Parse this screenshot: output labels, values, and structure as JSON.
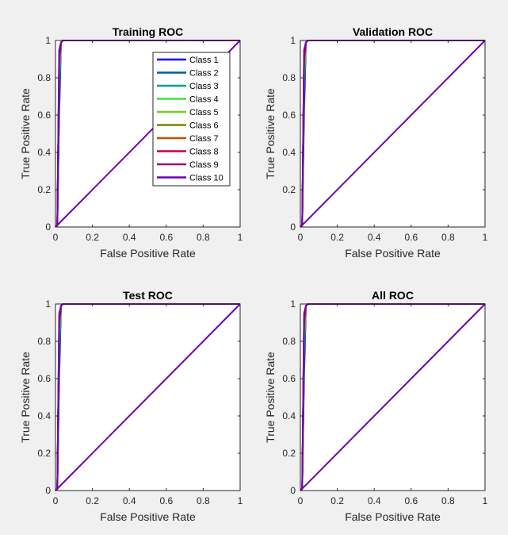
{
  "colors": {
    "figure_background": "#f0f0f0",
    "axes_background": "#ffffff",
    "axes_color": "#262626"
  },
  "chart_data": [
    {
      "type": "line",
      "title": "Training ROC",
      "xlabel": "False Positive Rate",
      "ylabel": "True Positive Rate",
      "xlim": [
        0,
        1
      ],
      "ylim": [
        0,
        1
      ],
      "xticks": [
        "0",
        "0.2",
        "0.4",
        "0.6",
        "0.8",
        "1"
      ],
      "yticks": [
        "0",
        "0.2",
        "0.4",
        "0.6",
        "0.8",
        "1"
      ],
      "grid": false,
      "legend": "top-right",
      "series": [
        {
          "name": "Class 1",
          "color": "#0000ff",
          "x": [
            0,
            0.01,
            0.02,
            0.03,
            0.04,
            1
          ],
          "y": [
            0,
            0.01,
            0.6,
            0.99,
            1,
            1
          ]
        },
        {
          "name": "Class 2",
          "color": "#005f9f",
          "x": [
            0,
            0.01,
            0.02,
            0.03,
            0.04,
            1
          ],
          "y": [
            0,
            0.01,
            0.7,
            0.99,
            1,
            1
          ]
        },
        {
          "name": "Class 3",
          "color": "#009f8f",
          "x": [
            0,
            0.01,
            0.02,
            0.03,
            0.04,
            1
          ],
          "y": [
            0,
            0.01,
            0.75,
            0.99,
            1,
            1
          ]
        },
        {
          "name": "Class 4",
          "color": "#3fdf3f",
          "x": [
            0,
            0.01,
            0.02,
            0.03,
            0.04,
            1
          ],
          "y": [
            0,
            0.01,
            0.8,
            0.99,
            1,
            1
          ]
        },
        {
          "name": "Class 5",
          "color": "#6fcf1f",
          "x": [
            0,
            0.01,
            0.02,
            0.03,
            0.04,
            1
          ],
          "y": [
            0,
            0.01,
            0.85,
            0.99,
            1,
            1
          ]
        },
        {
          "name": "Class 6",
          "color": "#808000",
          "x": [
            0,
            0.01,
            0.02,
            0.03,
            0.04,
            1
          ],
          "y": [
            0,
            0.01,
            0.85,
            0.99,
            1,
            1
          ]
        },
        {
          "name": "Class 7",
          "color": "#c05000",
          "x": [
            0,
            0.01,
            0.02,
            0.03,
            0.04,
            1
          ],
          "y": [
            0,
            0.01,
            0.88,
            0.99,
            1,
            1
          ]
        },
        {
          "name": "Class 8",
          "color": "#c0003f",
          "x": [
            0,
            0.01,
            0.02,
            0.03,
            0.04,
            1
          ],
          "y": [
            0,
            0.01,
            0.9,
            0.99,
            1,
            1
          ]
        },
        {
          "name": "Class 9",
          "color": "#9f007f",
          "x": [
            0,
            0.01,
            0.02,
            0.03,
            0.04,
            1
          ],
          "y": [
            0,
            0.01,
            0.92,
            0.99,
            1,
            1
          ]
        },
        {
          "name": "Class 10",
          "color": "#6f00af",
          "x": [
            0,
            0.01,
            0.02,
            0.03,
            0.04,
            0.05,
            1
          ],
          "y": [
            0,
            0.01,
            0.95,
            0.99,
            1,
            1,
            1
          ]
        },
        {
          "name": "",
          "color": "#6f00af",
          "x": [
            0,
            1
          ],
          "y": [
            0,
            1
          ]
        }
      ]
    },
    {
      "type": "line",
      "title": "Validation ROC",
      "xlabel": "False Positive Rate",
      "ylabel": "True Positive Rate",
      "xlim": [
        0,
        1
      ],
      "ylim": [
        0,
        1
      ],
      "xticks": [
        "0",
        "0.2",
        "0.4",
        "0.6",
        "0.8",
        "1"
      ],
      "yticks": [
        "0",
        "0.2",
        "0.4",
        "0.6",
        "0.8",
        "1"
      ],
      "grid": false,
      "series": [
        {
          "name": "",
          "color": "#0000ff",
          "x": [
            0,
            0.01,
            0.02,
            0.03,
            0.04,
            1
          ],
          "y": [
            0,
            0.01,
            0.6,
            0.99,
            1,
            1
          ]
        },
        {
          "name": "",
          "color": "#005f9f",
          "x": [
            0,
            0.01,
            0.02,
            0.03,
            0.04,
            1
          ],
          "y": [
            0,
            0.01,
            0.7,
            0.99,
            1,
            1
          ]
        },
        {
          "name": "",
          "color": "#009f8f",
          "x": [
            0,
            0.01,
            0.02,
            0.03,
            0.04,
            1
          ],
          "y": [
            0,
            0.01,
            0.75,
            0.99,
            1,
            1
          ]
        },
        {
          "name": "",
          "color": "#3fdf3f",
          "x": [
            0,
            0.01,
            0.02,
            0.03,
            0.04,
            1
          ],
          "y": [
            0,
            0.01,
            0.8,
            0.99,
            1,
            1
          ]
        },
        {
          "name": "",
          "color": "#6fcf1f",
          "x": [
            0,
            0.01,
            0.02,
            0.03,
            0.04,
            1
          ],
          "y": [
            0,
            0.01,
            0.85,
            0.99,
            1,
            1
          ]
        },
        {
          "name": "",
          "color": "#808000",
          "x": [
            0,
            0.01,
            0.02,
            0.03,
            0.04,
            1
          ],
          "y": [
            0,
            0.01,
            0.85,
            0.99,
            1,
            1
          ]
        },
        {
          "name": "",
          "color": "#c05000",
          "x": [
            0,
            0.01,
            0.02,
            0.03,
            0.04,
            1
          ],
          "y": [
            0,
            0.01,
            0.88,
            0.99,
            1,
            1
          ]
        },
        {
          "name": "",
          "color": "#c0003f",
          "x": [
            0,
            0.01,
            0.02,
            0.03,
            0.04,
            1
          ],
          "y": [
            0,
            0.01,
            0.9,
            0.99,
            1,
            1
          ]
        },
        {
          "name": "",
          "color": "#9f007f",
          "x": [
            0,
            0.01,
            0.02,
            0.03,
            0.04,
            1
          ],
          "y": [
            0,
            0.01,
            0.92,
            0.99,
            1,
            1
          ]
        },
        {
          "name": "",
          "color": "#6f00af",
          "x": [
            0,
            0.01,
            0.02,
            0.03,
            0.04,
            0.05,
            1
          ],
          "y": [
            0,
            0.01,
            0.95,
            0.99,
            1,
            1,
            1
          ]
        },
        {
          "name": "",
          "color": "#6f00af",
          "x": [
            0,
            1
          ],
          "y": [
            0,
            1
          ]
        }
      ]
    },
    {
      "type": "line",
      "title": "Test ROC",
      "xlabel": "False Positive Rate",
      "ylabel": "True Positive Rate",
      "xlim": [
        0,
        1
      ],
      "ylim": [
        0,
        1
      ],
      "xticks": [
        "0",
        "0.2",
        "0.4",
        "0.6",
        "0.8",
        "1"
      ],
      "yticks": [
        "0",
        "0.2",
        "0.4",
        "0.6",
        "0.8",
        "1"
      ],
      "grid": false,
      "series": [
        {
          "name": "",
          "color": "#0000ff",
          "x": [
            0,
            0.01,
            0.02,
            0.03,
            0.04,
            1
          ],
          "y": [
            0,
            0.01,
            0.6,
            0.99,
            1,
            1
          ]
        },
        {
          "name": "",
          "color": "#005f9f",
          "x": [
            0,
            0.01,
            0.02,
            0.03,
            0.04,
            1
          ],
          "y": [
            0,
            0.01,
            0.7,
            0.99,
            1,
            1
          ]
        },
        {
          "name": "",
          "color": "#009f8f",
          "x": [
            0,
            0.01,
            0.02,
            0.03,
            0.04,
            1
          ],
          "y": [
            0,
            0.01,
            0.75,
            0.99,
            1,
            1
          ]
        },
        {
          "name": "",
          "color": "#3fdf3f",
          "x": [
            0,
            0.01,
            0.02,
            0.03,
            0.04,
            1
          ],
          "y": [
            0,
            0.01,
            0.8,
            0.99,
            1,
            1
          ]
        },
        {
          "name": "",
          "color": "#6fcf1f",
          "x": [
            0,
            0.01,
            0.02,
            0.03,
            0.04,
            1
          ],
          "y": [
            0,
            0.01,
            0.85,
            0.99,
            1,
            1
          ]
        },
        {
          "name": "",
          "color": "#808000",
          "x": [
            0,
            0.01,
            0.02,
            0.03,
            0.04,
            1
          ],
          "y": [
            0,
            0.01,
            0.85,
            0.99,
            1,
            1
          ]
        },
        {
          "name": "",
          "color": "#c05000",
          "x": [
            0,
            0.01,
            0.02,
            0.03,
            0.04,
            1
          ],
          "y": [
            0,
            0.01,
            0.88,
            0.99,
            1,
            1
          ]
        },
        {
          "name": "",
          "color": "#c0003f",
          "x": [
            0,
            0.01,
            0.02,
            0.03,
            0.04,
            1
          ],
          "y": [
            0,
            0.01,
            0.9,
            0.99,
            1,
            1
          ]
        },
        {
          "name": "",
          "color": "#9f007f",
          "x": [
            0,
            0.01,
            0.02,
            0.03,
            0.04,
            1
          ],
          "y": [
            0,
            0.01,
            0.92,
            0.99,
            1,
            1
          ]
        },
        {
          "name": "",
          "color": "#6f00af",
          "x": [
            0,
            0.01,
            0.02,
            0.03,
            0.04,
            0.05,
            1
          ],
          "y": [
            0,
            0.01,
            0.95,
            0.99,
            1,
            1,
            1
          ]
        },
        {
          "name": "",
          "color": "#6f00af",
          "x": [
            0,
            1
          ],
          "y": [
            0,
            1
          ]
        }
      ]
    },
    {
      "type": "line",
      "title": "All ROC",
      "xlabel": "False Positive Rate",
      "ylabel": "True Positive Rate",
      "xlim": [
        0,
        1
      ],
      "ylim": [
        0,
        1
      ],
      "xticks": [
        "0",
        "0.2",
        "0.4",
        "0.6",
        "0.8",
        "1"
      ],
      "yticks": [
        "0",
        "0.2",
        "0.4",
        "0.6",
        "0.8",
        "1"
      ],
      "grid": false,
      "series": [
        {
          "name": "",
          "color": "#0000ff",
          "x": [
            0,
            0.01,
            0.02,
            0.03,
            0.04,
            1
          ],
          "y": [
            0,
            0.01,
            0.6,
            0.99,
            1,
            1
          ]
        },
        {
          "name": "",
          "color": "#005f9f",
          "x": [
            0,
            0.01,
            0.02,
            0.03,
            0.04,
            1
          ],
          "y": [
            0,
            0.01,
            0.7,
            0.99,
            1,
            1
          ]
        },
        {
          "name": "",
          "color": "#009f8f",
          "x": [
            0,
            0.01,
            0.02,
            0.03,
            0.04,
            1
          ],
          "y": [
            0,
            0.01,
            0.75,
            0.99,
            1,
            1
          ]
        },
        {
          "name": "",
          "color": "#3fdf3f",
          "x": [
            0,
            0.01,
            0.02,
            0.03,
            0.04,
            1
          ],
          "y": [
            0,
            0.01,
            0.8,
            0.99,
            1,
            1
          ]
        },
        {
          "name": "",
          "color": "#6fcf1f",
          "x": [
            0,
            0.01,
            0.02,
            0.03,
            0.04,
            1
          ],
          "y": [
            0,
            0.01,
            0.85,
            0.99,
            1,
            1
          ]
        },
        {
          "name": "",
          "color": "#808000",
          "x": [
            0,
            0.01,
            0.02,
            0.03,
            0.04,
            1
          ],
          "y": [
            0,
            0.01,
            0.85,
            0.99,
            1,
            1
          ]
        },
        {
          "name": "",
          "color": "#c05000",
          "x": [
            0,
            0.01,
            0.02,
            0.03,
            0.04,
            1
          ],
          "y": [
            0,
            0.01,
            0.88,
            0.99,
            1,
            1
          ]
        },
        {
          "name": "",
          "color": "#c0003f",
          "x": [
            0,
            0.01,
            0.02,
            0.03,
            0.04,
            1
          ],
          "y": [
            0,
            0.01,
            0.9,
            0.99,
            1,
            1
          ]
        },
        {
          "name": "",
          "color": "#9f007f",
          "x": [
            0,
            0.01,
            0.02,
            0.03,
            0.04,
            1
          ],
          "y": [
            0,
            0.01,
            0.92,
            0.99,
            1,
            1
          ]
        },
        {
          "name": "",
          "color": "#6f00af",
          "x": [
            0,
            0.01,
            0.02,
            0.03,
            0.04,
            0.05,
            1
          ],
          "y": [
            0,
            0.01,
            0.95,
            0.99,
            1,
            1,
            1
          ]
        },
        {
          "name": "",
          "color": "#6f00af",
          "x": [
            0,
            1
          ],
          "y": [
            0,
            1
          ]
        }
      ]
    }
  ]
}
